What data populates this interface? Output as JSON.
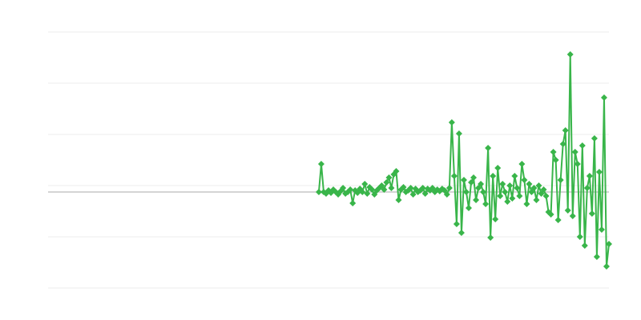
{
  "chart_data": {
    "type": "line",
    "title": "",
    "xlabel": "",
    "ylabel": "",
    "xlim": [
      -112,
      120
    ],
    "ylim": [
      -120,
      200
    ],
    "y_gridlines": [
      -120,
      -56,
      8,
      72,
      136,
      200
    ],
    "grid": true,
    "zero_line": true,
    "marker": "diamond",
    "colors": {
      "series": "#39b54a",
      "grid": "#ececec",
      "zero_line": "#aaaaaa"
    },
    "series": [
      {
        "values": [
          0,
          35,
          0,
          -2,
          2,
          -1,
          3,
          0,
          -3,
          1,
          5,
          -2,
          0,
          3,
          -14,
          2,
          -1,
          4,
          0,
          10,
          -2,
          6,
          3,
          -3,
          2,
          5,
          8,
          3,
          12,
          18,
          5,
          22,
          26,
          -10,
          3,
          6,
          0,
          2,
          5,
          -3,
          4,
          0,
          2,
          5,
          -2,
          4,
          2,
          5,
          0,
          3,
          1,
          4,
          2,
          -3,
          5,
          87,
          20,
          -40,
          73,
          -51,
          15,
          0,
          -20,
          12,
          18,
          -10,
          5,
          10,
          0,
          -15,
          55,
          -57,
          20,
          -34,
          30,
          -5,
          10,
          0,
          -12,
          8,
          -8,
          20,
          5,
          -5,
          35,
          15,
          -15,
          10,
          0,
          5,
          -10,
          8,
          -2,
          3,
          -5,
          -25,
          -28,
          50,
          40,
          -35,
          15,
          60,
          77,
          -23,
          172,
          -30,
          50,
          35,
          -56,
          58,
          -67,
          5,
          20,
          -27,
          67,
          -81,
          25,
          -47,
          118,
          -93,
          -65
        ]
      }
    ]
  }
}
